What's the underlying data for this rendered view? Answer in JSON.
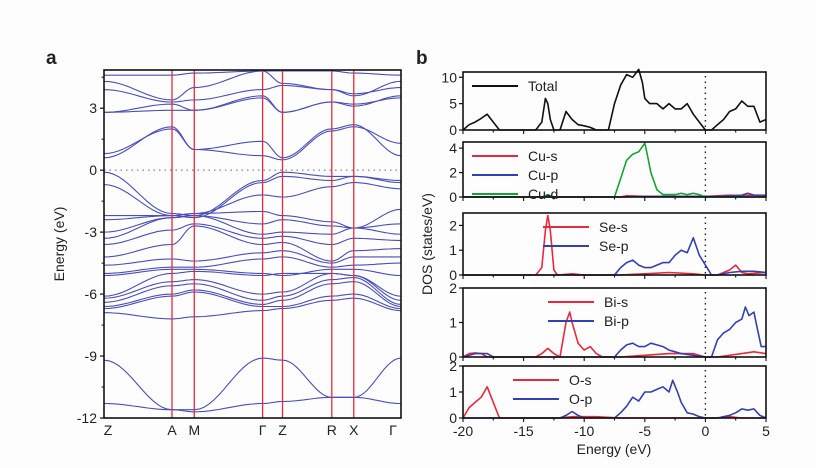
{
  "chart_data": [
    {
      "panel_label": "a",
      "type": "line",
      "title": "",
      "xlabel": "",
      "ylabel": "Energy (eV)",
      "ylim": [
        -12,
        4.85
      ],
      "yticks": [
        3,
        0,
        -3,
        -6,
        -9,
        -12
      ],
      "k_path_labels": [
        "Z",
        "A",
        "M",
        "Γ",
        "Z",
        "R",
        "X",
        "Γ"
      ],
      "k_path_positions": [
        0,
        0.229,
        0.304,
        0.534,
        0.601,
        0.767,
        0.841,
        1.0
      ],
      "high_symmetry_lines": [
        0.229,
        0.304,
        0.534,
        0.601,
        0.767,
        0.841
      ],
      "fermi_level": 0,
      "band_color": "#4a4fb5",
      "line_color": "#e8293a",
      "bands_description": "Approximate electronic band structure; energies in eV sampled at k-path nodes",
      "bands": [
        [
          -11.3,
          -11.6,
          -11.7,
          -11.3,
          -11.2,
          -11.0,
          -11.0,
          -11.3
        ],
        [
          -9.2,
          -11.6,
          -11.6,
          -9.1,
          -9.2,
          -11.0,
          -11.0,
          -9.1
        ],
        [
          -6.9,
          -7.2,
          -7.1,
          -6.8,
          -6.7,
          -6.3,
          -6.2,
          -6.8
        ],
        [
          -6.7,
          -6.1,
          -5.9,
          -6.6,
          -6.6,
          -6.1,
          -6.0,
          -6.7
        ],
        [
          -6.6,
          -6.0,
          -5.8,
          -6.5,
          -6.3,
          -5.5,
          -5.4,
          -6.6
        ],
        [
          -6.4,
          -5.6,
          -5.5,
          -6.3,
          -6.1,
          -5.3,
          -5.2,
          -6.5
        ],
        [
          -6.2,
          -5.4,
          -5.3,
          -6.0,
          -5.9,
          -5.0,
          -5.1,
          -6.3
        ],
        [
          -6.1,
          -5.0,
          -4.9,
          -5.1,
          -5.0,
          -5.0,
          -5.1,
          -6.1
        ],
        [
          -5.1,
          -4.8,
          -4.8,
          -5.0,
          -5.1,
          -4.8,
          -4.8,
          -5.1
        ],
        [
          -5.0,
          -4.7,
          -4.7,
          -4.3,
          -4.2,
          -4.7,
          -4.6,
          -4.5
        ],
        [
          -4.6,
          -4.3,
          -4.4,
          -4.0,
          -3.9,
          -4.5,
          -4.2,
          -4.2
        ],
        [
          -4.2,
          -3.6,
          -2.7,
          -3.6,
          -3.5,
          -4.4,
          -3.9,
          -3.8
        ],
        [
          -3.6,
          -2.9,
          -2.6,
          -3.3,
          -3.2,
          -3.6,
          -3.3,
          -3.4
        ],
        [
          -3.3,
          -2.3,
          -2.2,
          -3.1,
          -3.0,
          -3.1,
          -2.8,
          -3.1
        ],
        [
          -3.0,
          -2.3,
          -2.2,
          -2.6,
          -2.4,
          -2.7,
          -2.8,
          -2.6
        ],
        [
          -2.4,
          -2.2,
          -2.1,
          -2.0,
          -2.2,
          -2.5,
          -2.8,
          -1.9
        ],
        [
          -2.2,
          -2.2,
          -2.1,
          -1.2,
          -1.3,
          -0.8,
          -0.6,
          -0.9
        ],
        [
          -0.7,
          -2.2,
          -2.3,
          -0.6,
          -0.3,
          -0.5,
          -0.3,
          -0.6
        ],
        [
          -0.1,
          -2.1,
          -2.2,
          -0.5,
          -0.1,
          -0.3,
          -0.3,
          -0.5
        ],
        [
          0.6,
          2.1,
          1.0,
          1.4,
          0.6,
          2.0,
          2.2,
          0.7
        ],
        [
          0.8,
          2.0,
          1.0,
          0.7,
          0.5,
          1.9,
          2.1,
          1.3
        ],
        [
          2.8,
          2.9,
          2.9,
          3.6,
          2.8,
          3.3,
          3.1,
          3.6
        ],
        [
          2.8,
          3.2,
          2.9,
          3.5,
          2.8,
          3.3,
          3.2,
          3.5
        ],
        [
          3.9,
          3.3,
          3.4,
          3.9,
          4.1,
          3.9,
          3.7,
          4.0
        ],
        [
          4.3,
          3.4,
          4.0,
          4.8,
          4.2,
          3.9,
          3.6,
          4.3
        ],
        [
          4.6,
          4.6,
          4.7,
          4.8,
          4.8,
          4.8,
          4.7,
          4.6
        ]
      ]
    },
    {
      "panel_label": "b",
      "type": "line",
      "xlabel": "Energy (eV)",
      "ylabel": "DOS (states/eV)",
      "xlim": [
        -20,
        5
      ],
      "xticks": [
        -20,
        -15,
        -10,
        -5,
        0,
        5
      ],
      "fermi_level": 0,
      "subplots": [
        {
          "ylim": [
            0,
            11
          ],
          "yticks": [
            0,
            5,
            10
          ],
          "legend_position": "top-left",
          "series": [
            {
              "name": "Total",
              "color": "#111111",
              "x": [
                -20,
                -19.5,
                -19,
                -18.5,
                -18,
                -17.5,
                -17,
                -14,
                -13.5,
                -13.2,
                -13,
                -12.8,
                -12.5,
                -12.2,
                -12,
                -11.5,
                -11,
                -10.5,
                -10,
                -9.5,
                -9,
                -8,
                -7.5,
                -7,
                -6.5,
                -6,
                -5.5,
                -5.2,
                -5,
                -4.6,
                -4,
                -3.5,
                -3,
                -2.5,
                -2,
                -1.5,
                -1,
                -0.5,
                0,
                0.5,
                1,
                1.5,
                2,
                2.5,
                3,
                3.5,
                4,
                4.5,
                5
              ],
              "y": [
                0,
                1,
                1.5,
                2.2,
                3,
                1.5,
                0,
                0,
                1.5,
                6,
                5,
                2,
                0,
                0,
                0,
                3.5,
                2,
                1,
                0.8,
                0.5,
                0,
                0,
                5,
                8.5,
                10.5,
                10,
                11.5,
                9,
                6,
                5,
                5,
                4,
                5,
                4,
                4,
                5,
                3,
                1.5,
                0,
                0,
                1,
                2,
                3.5,
                4,
                5.5,
                4.5,
                4.5,
                1.5,
                2
              ]
            }
          ]
        },
        {
          "ylim": [
            0,
            4.5
          ],
          "yticks": [
            0,
            2,
            4
          ],
          "legend_position": "top-left",
          "series": [
            {
              "name": "Cu-s",
              "color": "#e8293a",
              "x": [
                -20,
                -7,
                -6.5,
                -5,
                0,
                1,
                2,
                3,
                4,
                5
              ],
              "y": [
                0,
                0,
                0.1,
                0.05,
                0.05,
                0.1,
                0.15,
                0.1,
                0.15,
                0.15
              ]
            },
            {
              "name": "Cu-p",
              "color": "#3341b0",
              "x": [
                -20,
                -7,
                -5,
                0,
                1,
                2,
                3,
                3.5,
                4,
                5
              ],
              "y": [
                0,
                0,
                0.05,
                0.05,
                0.05,
                0.1,
                0.15,
                0.3,
                0.15,
                0.1
              ]
            },
            {
              "name": "Cu-d",
              "color": "#16a335",
              "x": [
                -20,
                -13.5,
                -13,
                -12.5,
                -7.5,
                -7,
                -6.5,
                -6,
                -5.5,
                -5,
                -4.8,
                -4.5,
                -4,
                -3.5,
                -3,
                -2.5,
                -2,
                -1.5,
                -1,
                -0.5,
                0,
                5
              ],
              "y": [
                0,
                0,
                0.2,
                0,
                0,
                1.5,
                3,
                3.5,
                3.7,
                4.4,
                3.5,
                2,
                0.6,
                0.2,
                0.2,
                0.2,
                0.3,
                0.2,
                0.3,
                0.2,
                0,
                0
              ]
            }
          ]
        },
        {
          "ylim": [
            0,
            2.5
          ],
          "yticks": [
            0,
            1,
            2
          ],
          "legend_position": "top-center",
          "series": [
            {
              "name": "Se-s",
              "color": "#e8293a",
              "x": [
                -20,
                -14,
                -13.5,
                -13.2,
                -13,
                -12.8,
                -12.5,
                -12.2,
                -11,
                -10,
                -7,
                -5,
                -3,
                -1,
                0,
                1,
                2,
                2.5,
                3,
                3.5,
                5
              ],
              "y": [
                0,
                0,
                0.3,
                1.8,
                2.4,
                1.8,
                0.2,
                0,
                0.05,
                0,
                0,
                0.05,
                0.1,
                0.05,
                0,
                0,
                0.2,
                0.4,
                0.1,
                0.05,
                0.1
              ]
            },
            {
              "name": "Se-p",
              "color": "#3341b0",
              "x": [
                -20,
                -7.5,
                -7,
                -6.5,
                -6,
                -5.5,
                -5,
                -4.5,
                -4,
                -3.5,
                -3,
                -2.5,
                -2,
                -1.5,
                -1,
                -0.5,
                0,
                0.5,
                1,
                2,
                3,
                4,
                5
              ],
              "y": [
                0,
                0,
                0.3,
                0.5,
                0.6,
                0.4,
                0.3,
                0.3,
                0.4,
                0.5,
                0.5,
                0.8,
                1.0,
                0.9,
                1.5,
                0.8,
                0.4,
                0,
                0,
                0.1,
                0.15,
                0.15,
                0.1
              ]
            }
          ]
        },
        {
          "ylim": [
            0,
            2
          ],
          "yticks": [
            0,
            1,
            2
          ],
          "legend_position": "top-center",
          "series": [
            {
              "name": "Bi-s",
              "color": "#e8293a",
              "x": [
                -20,
                -19.5,
                -19,
                -18.5,
                -18,
                -14,
                -13.5,
                -13,
                -12.5,
                -12,
                -11.5,
                -11.2,
                -11,
                -10.5,
                -10,
                -9.5,
                -9,
                -8.5,
                -7,
                -5,
                -3,
                -1,
                0,
                1,
                3,
                4,
                5
              ],
              "y": [
                0,
                0.1,
                0.12,
                0.1,
                0,
                0,
                0.1,
                0.25,
                0.1,
                0,
                1,
                1.3,
                1.0,
                0.4,
                0.2,
                0.3,
                0.1,
                0,
                0,
                0.05,
                0.1,
                0.1,
                0,
                0,
                0.1,
                0.15,
                0.1
              ]
            },
            {
              "name": "Bi-p",
              "color": "#3341b0",
              "x": [
                -20,
                -19,
                -18,
                -17.5,
                -7.5,
                -7,
                -6.5,
                -6,
                -5.5,
                -5,
                -4.5,
                -4,
                -3.5,
                -3,
                -2.5,
                -2,
                -1,
                0,
                0.5,
                1,
                1.5,
                2,
                2.5,
                3,
                3.3,
                3.6,
                4,
                4.3,
                4.6,
                5
              ],
              "y": [
                0,
                0.1,
                0.1,
                0,
                0,
                0.2,
                0.35,
                0.4,
                0.3,
                0.3,
                0.4,
                0.35,
                0.3,
                0.2,
                0.15,
                0.1,
                0.05,
                0,
                0,
                0.5,
                0.7,
                0.8,
                1.0,
                1.1,
                1.45,
                1.2,
                1.3,
                0.8,
                0.3,
                0.3
              ]
            }
          ]
        },
        {
          "ylim": [
            0,
            2
          ],
          "yticks": [
            0,
            1,
            2
          ],
          "legend_position": "top-left",
          "series": [
            {
              "name": "O-s",
              "color": "#e8293a",
              "x": [
                -20,
                -19.5,
                -19,
                -18.5,
                -18,
                -17.5,
                -17,
                -12,
                -11,
                -9,
                -7,
                0,
                1,
                2,
                3,
                5
              ],
              "y": [
                0,
                0.4,
                0.6,
                0.8,
                1.2,
                0.6,
                0,
                0,
                0.05,
                0.05,
                0,
                0,
                0,
                0.05,
                0,
                0
              ]
            },
            {
              "name": "O-p",
              "color": "#3341b0",
              "x": [
                -20,
                -12,
                -11.5,
                -11,
                -10.5,
                -10,
                -9,
                -7.5,
                -7,
                -6.5,
                -6,
                -5.5,
                -5,
                -4.5,
                -4,
                -3.5,
                -3,
                -2.7,
                -2.3,
                -2,
                -1.5,
                -1,
                -0.5,
                0,
                1,
                1.5,
                2,
                2.5,
                3,
                3.5,
                4,
                4.5,
                5
              ],
              "y": [
                0,
                0,
                0.1,
                0.25,
                0.1,
                0,
                0,
                0,
                0.2,
                0.45,
                0.8,
                0.65,
                1.0,
                1.0,
                1.1,
                1.2,
                1.0,
                1.45,
                1.0,
                0.6,
                0.2,
                0.15,
                0.05,
                0,
                0,
                0.05,
                0.1,
                0.2,
                0.35,
                0.3,
                0.35,
                0.1,
                0
              ]
            }
          ]
        }
      ]
    }
  ]
}
